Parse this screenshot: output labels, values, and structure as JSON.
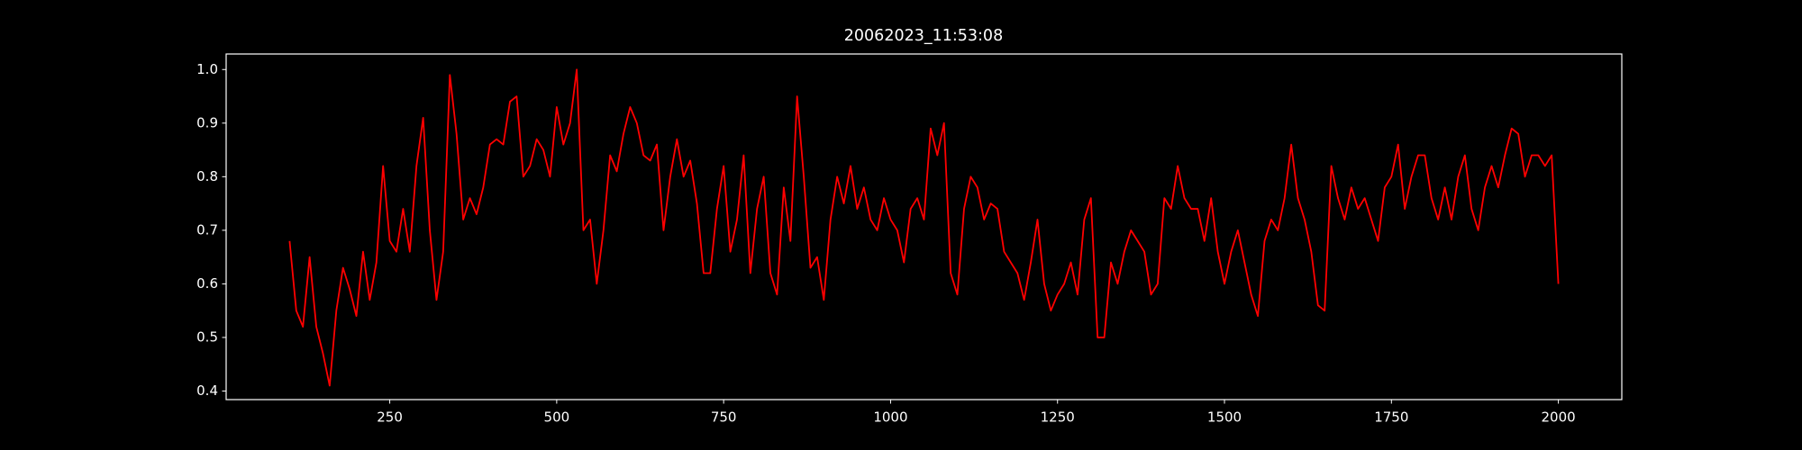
{
  "chart_data": {
    "type": "line",
    "title": "20062023_11:53:08",
    "color": "#ff0000",
    "background": "#000000",
    "foreground": "#ffffff",
    "x": [
      100,
      110,
      120,
      130,
      140,
      150,
      160,
      170,
      180,
      190,
      200,
      210,
      220,
      230,
      240,
      250,
      260,
      270,
      280,
      290,
      300,
      310,
      320,
      330,
      340,
      350,
      360,
      370,
      380,
      390,
      400,
      410,
      420,
      430,
      440,
      450,
      460,
      470,
      480,
      490,
      500,
      510,
      520,
      530,
      540,
      550,
      560,
      570,
      580,
      590,
      600,
      610,
      620,
      630,
      640,
      650,
      660,
      670,
      680,
      690,
      700,
      710,
      720,
      730,
      740,
      750,
      760,
      770,
      780,
      790,
      800,
      810,
      820,
      830,
      840,
      850,
      860,
      870,
      880,
      890,
      900,
      910,
      920,
      930,
      940,
      950,
      960,
      970,
      980,
      990,
      1000,
      1010,
      1020,
      1030,
      1040,
      1050,
      1060,
      1070,
      1080,
      1090,
      1100,
      1110,
      1120,
      1130,
      1140,
      1150,
      1160,
      1170,
      1180,
      1190,
      1200,
      1210,
      1220,
      1230,
      1240,
      1250,
      1260,
      1270,
      1280,
      1290,
      1300,
      1310,
      1320,
      1330,
      1340,
      1350,
      1360,
      1370,
      1380,
      1390,
      1400,
      1410,
      1420,
      1430,
      1440,
      1450,
      1460,
      1470,
      1480,
      1490,
      1500,
      1510,
      1520,
      1530,
      1540,
      1550,
      1560,
      1570,
      1580,
      1590,
      1600,
      1610,
      1620,
      1630,
      1640,
      1650,
      1660,
      1670,
      1680,
      1690,
      1700,
      1710,
      1720,
      1730,
      1740,
      1750,
      1760,
      1770,
      1780,
      1790,
      1800,
      1810,
      1820,
      1830,
      1840,
      1850,
      1860,
      1870,
      1880,
      1890,
      1900,
      1910,
      1920,
      1930,
      1940,
      1950,
      1960,
      1970,
      1980,
      1990,
      2000
    ],
    "values": [
      0.68,
      0.55,
      0.52,
      0.65,
      0.52,
      0.47,
      0.41,
      0.55,
      0.63,
      0.59,
      0.54,
      0.66,
      0.57,
      0.64,
      0.82,
      0.68,
      0.66,
      0.74,
      0.66,
      0.82,
      0.91,
      0.7,
      0.57,
      0.66,
      0.99,
      0.88,
      0.72,
      0.76,
      0.73,
      0.78,
      0.86,
      0.87,
      0.86,
      0.94,
      0.95,
      0.8,
      0.82,
      0.87,
      0.85,
      0.8,
      0.93,
      0.86,
      0.9,
      1.0,
      0.7,
      0.72,
      0.6,
      0.7,
      0.84,
      0.81,
      0.88,
      0.93,
      0.9,
      0.84,
      0.83,
      0.86,
      0.7,
      0.8,
      0.87,
      0.8,
      0.83,
      0.75,
      0.62,
      0.62,
      0.74,
      0.82,
      0.66,
      0.72,
      0.84,
      0.62,
      0.74,
      0.8,
      0.62,
      0.58,
      0.78,
      0.68,
      0.95,
      0.8,
      0.63,
      0.65,
      0.57,
      0.72,
      0.8,
      0.75,
      0.82,
      0.74,
      0.78,
      0.72,
      0.7,
      0.76,
      0.72,
      0.7,
      0.64,
      0.74,
      0.76,
      0.72,
      0.89,
      0.84,
      0.9,
      0.62,
      0.58,
      0.74,
      0.8,
      0.78,
      0.72,
      0.75,
      0.74,
      0.66,
      0.64,
      0.62,
      0.57,
      0.64,
      0.72,
      0.6,
      0.55,
      0.58,
      0.6,
      0.64,
      0.58,
      0.72,
      0.76,
      0.5,
      0.5,
      0.64,
      0.6,
      0.66,
      0.7,
      0.68,
      0.66,
      0.58,
      0.6,
      0.76,
      0.74,
      0.82,
      0.76,
      0.74,
      0.74,
      0.68,
      0.76,
      0.66,
      0.6,
      0.66,
      0.7,
      0.64,
      0.58,
      0.54,
      0.68,
      0.72,
      0.7,
      0.76,
      0.86,
      0.76,
      0.72,
      0.66,
      0.56,
      0.55,
      0.82,
      0.76,
      0.72,
      0.78,
      0.74,
      0.76,
      0.72,
      0.68,
      0.78,
      0.8,
      0.86,
      0.74,
      0.8,
      0.84,
      0.84,
      0.76,
      0.72,
      0.78,
      0.72,
      0.8,
      0.84,
      0.74,
      0.7,
      0.78,
      0.82,
      0.78,
      0.84,
      0.89,
      0.88,
      0.8,
      0.84,
      0.84,
      0.82,
      0.84,
      0.6
    ],
    "xlim": [
      5,
      2095
    ],
    "xticks": [
      250,
      500,
      750,
      1000,
      1250,
      1500,
      1750,
      2000
    ],
    "ylim": [
      0.384,
      1.029
    ],
    "yticks": [
      0.4,
      0.5,
      0.6,
      0.7,
      0.8,
      0.9,
      {
        "value": 1,
        "label": "1.0"
      }
    ]
  }
}
